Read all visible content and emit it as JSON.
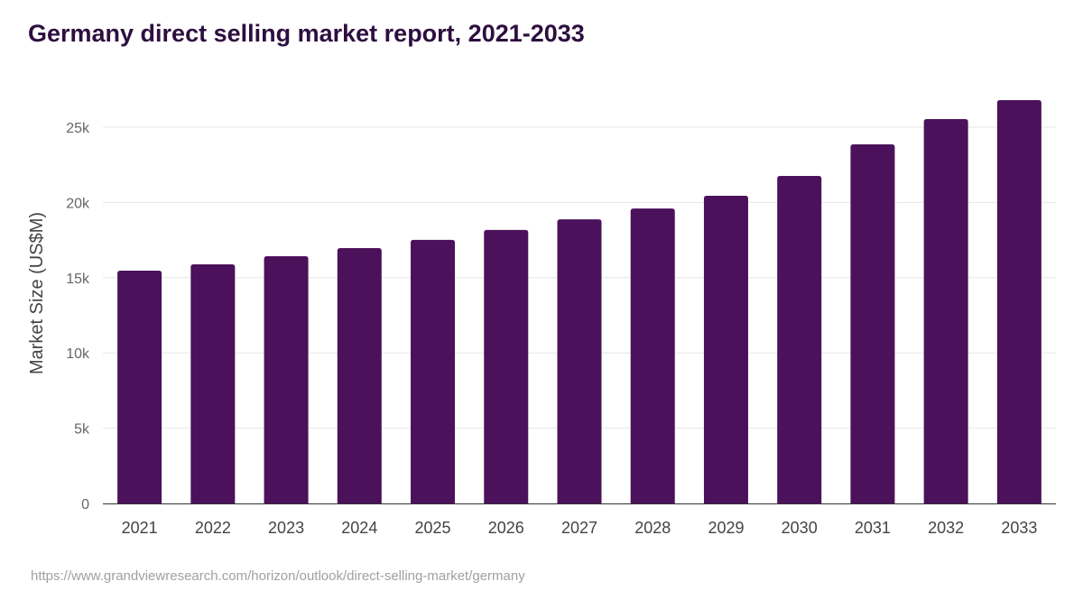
{
  "title": "Germany direct selling market report, 2021-2033",
  "source": "https://www.grandviewresearch.com/horizon/outlook/direct-selling-market/germany",
  "colors": {
    "bar": "#4b115a",
    "title": "#2d0f3f"
  },
  "chart_data": {
    "type": "bar",
    "title": "Germany direct selling market report, 2021-2033",
    "xlabel": "",
    "ylabel": "Market Size (US$M)",
    "categories": [
      "2021",
      "2022",
      "2023",
      "2024",
      "2025",
      "2026",
      "2027",
      "2028",
      "2029",
      "2030",
      "2031",
      "2032",
      "2033"
    ],
    "values": [
      15470,
      15890,
      16430,
      16970,
      17510,
      18170,
      18880,
      19600,
      20440,
      21760,
      23860,
      25540,
      26800
    ],
    "ylim": [
      0,
      27500
    ],
    "yticks": [
      0,
      5000,
      10000,
      15000,
      20000,
      25000
    ],
    "ytick_labels": [
      "0",
      "5k",
      "10k",
      "15k",
      "20k",
      "25k"
    ],
    "grid": true,
    "legend": "none"
  }
}
